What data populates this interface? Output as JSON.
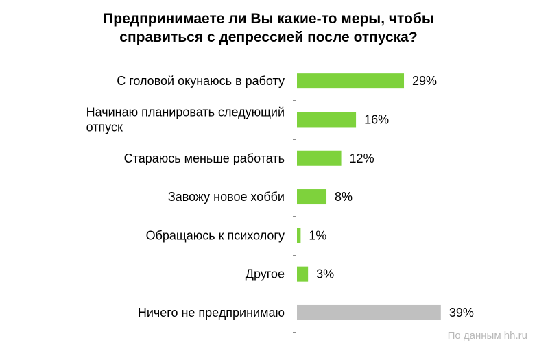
{
  "chart_data": {
    "type": "bar",
    "orientation": "horizontal",
    "title_lines": [
      "Предпринимаете ли Вы какие-то меры, чтобы",
      "справиться с депрессией после отпуска?"
    ],
    "categories": [
      [
        "С головой окунаюсь в работу"
      ],
      [
        "Начинаю планировать следующий",
        "отпуск"
      ],
      [
        "Стараюсь меньше работать"
      ],
      [
        "Завожу новое хобби"
      ],
      [
        "Обращаюсь к психологу"
      ],
      [
        "Другое"
      ],
      [
        "Ничего не предпринимаю"
      ]
    ],
    "values": [
      29,
      16,
      12,
      8,
      1,
      3,
      39
    ],
    "value_labels": [
      "29%",
      "16%",
      "12%",
      "8%",
      "1%",
      "3%",
      "39%"
    ],
    "unit": "%",
    "xlim": [
      0,
      45
    ],
    "colors": [
      "#7ed23c",
      "#7ed23c",
      "#7ed23c",
      "#7ed23c",
      "#7ed23c",
      "#7ed23c",
      "#c0c0c0"
    ],
    "grid": false,
    "legend": "none"
  },
  "source": "По данным hh.ru"
}
